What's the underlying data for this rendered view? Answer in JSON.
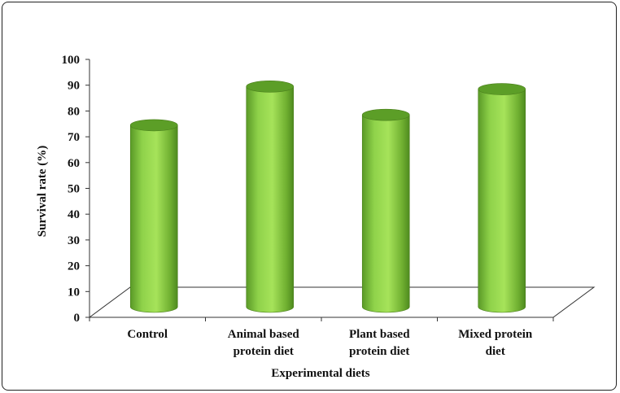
{
  "chart_data": {
    "type": "bar",
    "style": "3d-cylinder",
    "categories": [
      [
        "Control"
      ],
      [
        "Animal based",
        "protein diet"
      ],
      [
        "Plant based",
        "protein diet"
      ],
      [
        "Mixed protein",
        "diet"
      ]
    ],
    "values": [
      77,
      92,
      81,
      91
    ],
    "xlabel": "Experimental diets",
    "ylabel": "Survival rate (%)",
    "ylim": [
      0,
      100
    ],
    "yticks": [
      0,
      10,
      20,
      30,
      40,
      50,
      60,
      70,
      80,
      90,
      100
    ],
    "grid": false,
    "colors": {
      "bar_light": "#a6e35a",
      "bar_mid": "#7cc13a",
      "bar_dark": "#4e8a1f",
      "top": "#5c9e27",
      "axis": "#333333"
    }
  }
}
